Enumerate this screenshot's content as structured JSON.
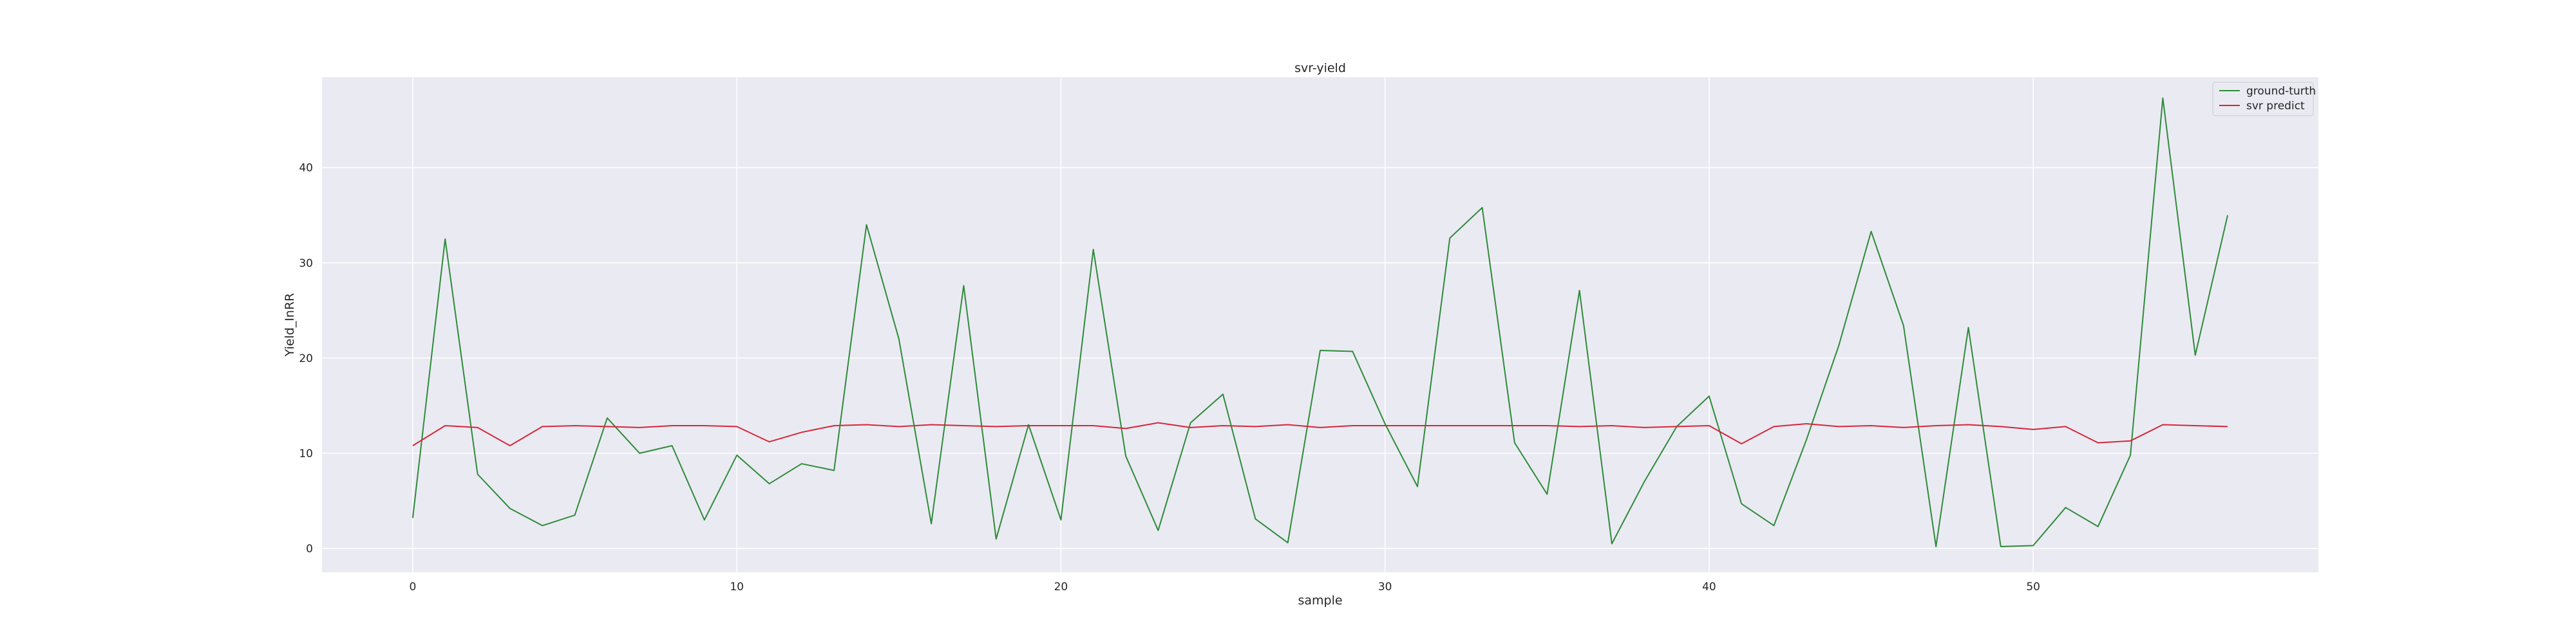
{
  "chart_data": {
    "type": "line",
    "title": "svr-yield",
    "xlabel": "sample",
    "ylabel": "Yield_InRR",
    "xlim": [
      -2.8,
      58.8
    ],
    "ylim": [
      -2.5,
      49.5
    ],
    "xticks": [
      0,
      10,
      20,
      30,
      40,
      50
    ],
    "yticks": [
      0,
      10,
      20,
      30,
      40
    ],
    "grid": true,
    "legend_position": "top-right",
    "x": [
      0,
      1,
      2,
      3,
      4,
      5,
      6,
      7,
      8,
      9,
      10,
      11,
      12,
      13,
      14,
      15,
      16,
      17,
      18,
      19,
      20,
      21,
      22,
      23,
      24,
      25,
      26,
      27,
      28,
      29,
      30,
      31,
      32,
      33,
      34,
      35,
      36,
      37,
      38,
      39,
      40,
      41,
      42,
      43,
      44,
      45,
      46,
      47,
      48,
      49,
      50,
      51,
      52,
      53,
      54,
      55,
      56
    ],
    "series": [
      {
        "name": "ground-turth",
        "color": "#2e8b3a",
        "values": [
          3.2,
          32.5,
          7.8,
          4.2,
          2.4,
          3.5,
          13.7,
          10.0,
          10.8,
          3.0,
          9.8,
          6.8,
          8.9,
          8.2,
          34.0,
          22.0,
          2.6,
          27.6,
          1.0,
          13.0,
          3.0,
          31.4,
          9.7,
          1.9,
          13.2,
          16.2,
          3.1,
          0.6,
          20.8,
          20.7,
          13.1,
          6.5,
          32.6,
          35.8,
          11.1,
          5.7,
          27.1,
          0.5,
          7.0,
          12.8,
          16.0,
          4.7,
          2.4,
          11.4,
          21.3,
          33.3,
          23.4,
          0.2,
          23.2,
          0.2,
          0.3,
          4.3,
          2.3,
          9.8,
          47.3,
          20.3,
          35.0
        ]
      },
      {
        "name": "svr predict",
        "color": "#d6273a",
        "values": [
          10.8,
          12.9,
          12.7,
          10.8,
          12.8,
          12.9,
          12.8,
          12.7,
          12.9,
          12.9,
          12.8,
          11.2,
          12.2,
          12.9,
          13.0,
          12.8,
          13.0,
          12.9,
          12.8,
          12.9,
          12.9,
          12.9,
          12.6,
          13.2,
          12.7,
          12.9,
          12.8,
          13.0,
          12.7,
          12.9,
          12.9,
          12.9,
          12.9,
          12.9,
          12.9,
          12.9,
          12.8,
          12.9,
          12.7,
          12.8,
          12.9,
          11.0,
          12.8,
          13.1,
          12.8,
          12.9,
          12.7,
          12.9,
          13.0,
          12.8,
          12.5,
          12.8,
          11.1,
          11.3,
          13.0,
          12.9,
          12.8
        ]
      }
    ]
  }
}
